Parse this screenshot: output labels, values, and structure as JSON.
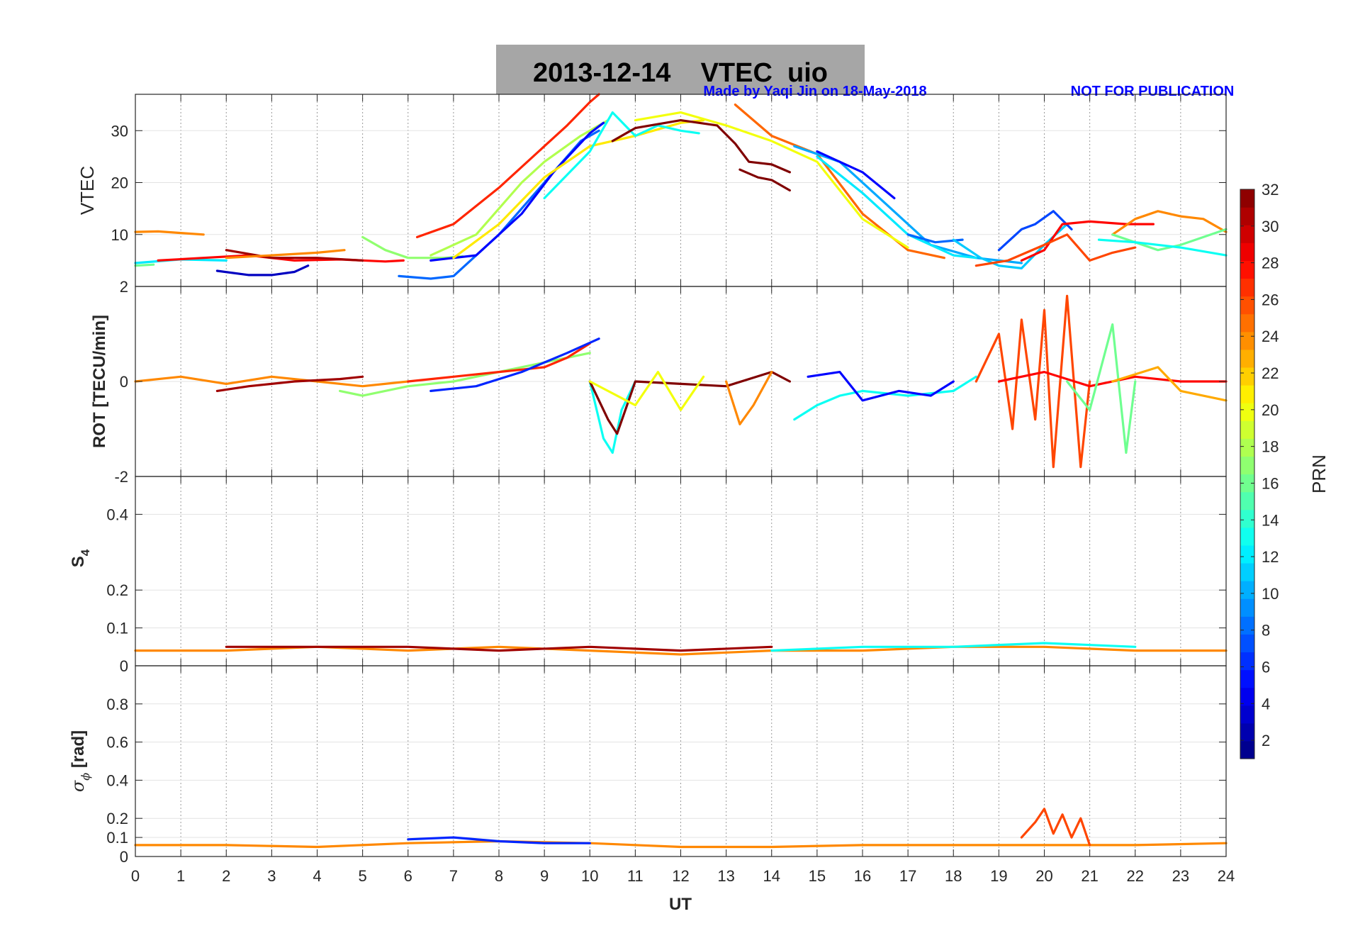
{
  "chart_data": {
    "type": "line",
    "title": "2013-12-14    VTEC  uio",
    "credit_left": "Made by Yaqi Jin on 18-May-2018",
    "credit_right": "NOT FOR PUBLICATION",
    "xlabel": "UT",
    "xlim": [
      0,
      24
    ],
    "xticks": [
      "0",
      "1",
      "2",
      "3",
      "4",
      "5",
      "6",
      "7",
      "8",
      "9",
      "10",
      "11",
      "12",
      "13",
      "14",
      "15",
      "16",
      "17",
      "18",
      "19",
      "20",
      "21",
      "22",
      "23",
      "24"
    ],
    "colorbar": {
      "label": "PRN",
      "range": [
        1,
        32
      ],
      "ticks": [
        "2",
        "4",
        "6",
        "8",
        "10",
        "12",
        "14",
        "16",
        "18",
        "20",
        "22",
        "24",
        "26",
        "28",
        "30",
        "32"
      ]
    },
    "panels": [
      {
        "id": "vtec",
        "ylabel": "VTEC",
        "ylim": [
          0,
          37
        ],
        "yticks": [
          {
            "v": 10,
            "t": "10"
          },
          {
            "v": 20,
            "t": "20"
          },
          {
            "v": 30,
            "t": "30"
          }
        ],
        "series": [
          {
            "prn": 24,
            "x": [
              0.0,
              0.5,
              1.0,
              1.5
            ],
            "y": [
              10.5,
              10.6,
              10.3,
              10.0
            ]
          },
          {
            "prn": 16,
            "x": [
              0.0,
              0.4
            ],
            "y": [
              4.0,
              4.2
            ]
          },
          {
            "prn": 12,
            "x": [
              0.0,
              1.0,
              2.0
            ],
            "y": [
              4.5,
              5.2,
              5.0
            ]
          },
          {
            "prn": 28,
            "x": [
              0.5,
              1.5,
              2.5,
              3.5,
              4.5,
              5.5,
              5.9
            ],
            "y": [
              5.0,
              5.5,
              6.0,
              5.0,
              5.2,
              4.8,
              5.0
            ]
          },
          {
            "prn": 31,
            "x": [
              2.0,
              3.0,
              4.0,
              5.0
            ],
            "y": [
              7.0,
              5.5,
              5.5,
              5.0
            ]
          },
          {
            "prn": 3,
            "x": [
              1.8,
              2.5,
              3.0,
              3.5,
              3.8
            ],
            "y": [
              3.0,
              2.2,
              2.2,
              2.8,
              4.0
            ]
          },
          {
            "prn": 24,
            "x": [
              2.0,
              3.0,
              4.0,
              4.6
            ],
            "y": [
              5.5,
              6.0,
              6.5,
              7.0
            ]
          },
          {
            "prn": 17,
            "x": [
              5.0,
              5.5,
              6.0,
              6.8,
              7.2
            ],
            "y": [
              9.5,
              7.0,
              5.5,
              5.5,
              5.8
            ]
          },
          {
            "prn": 27,
            "x": [
              6.2,
              7.0,
              8.0,
              9.0,
              9.5,
              10.0,
              10.2
            ],
            "y": [
              9.5,
              12.0,
              19.0,
              27.0,
              31.0,
              35.5,
              37.0
            ]
          },
          {
            "prn": 8,
            "x": [
              5.8,
              6.5,
              7.0,
              8.0,
              9.0,
              9.8,
              10.2
            ],
            "y": [
              2.0,
              1.5,
              2.0,
              10.0,
              20.0,
              28.0,
              30.0
            ]
          },
          {
            "prn": 18,
            "x": [
              6.5,
              7.5,
              8.5,
              9.0,
              9.8,
              10.4
            ],
            "y": [
              6.0,
              10.0,
              20.0,
              24.0,
              29.0,
              32.0
            ]
          },
          {
            "prn": 5,
            "x": [
              6.5,
              7.5,
              8.5,
              9.2,
              10.0,
              10.3
            ],
            "y": [
              5.0,
              6.0,
              14.0,
              22.0,
              29.5,
              31.5
            ]
          },
          {
            "prn": 21,
            "x": [
              7.0,
              8.0,
              9.0,
              10.0,
              11.0,
              12.0,
              12.5
            ],
            "y": [
              5.5,
              12.0,
              21.0,
              27.0,
              29.0,
              31.5,
              32.0
            ]
          },
          {
            "prn": 13,
            "x": [
              9.0,
              10.0,
              10.5,
              11.0,
              11.5,
              12.0,
              12.4
            ],
            "y": [
              17.0,
              26.0,
              33.5,
              29.0,
              31.0,
              30.0,
              29.5
            ]
          },
          {
            "prn": 32,
            "x": [
              10.5,
              11.0,
              12.0,
              12.8,
              13.2,
              13.5,
              14.0,
              14.4
            ],
            "y": [
              28.0,
              30.5,
              32.0,
              31.0,
              27.5,
              24.0,
              23.5,
              22.0
            ]
          },
          {
            "prn": 32,
            "x": [
              13.3,
              13.7,
              14.0,
              14.4
            ],
            "y": [
              22.5,
              21.0,
              20.5,
              18.5
            ]
          },
          {
            "prn": 25,
            "x": [
              13.2,
              14.0,
              15.0,
              16.0,
              17.0,
              17.8
            ],
            "y": [
              35.0,
              29.0,
              25.5,
              14.0,
              7.0,
              5.5
            ]
          },
          {
            "prn": 20,
            "x": [
              11.0,
              12.0,
              13.0,
              14.0,
              15.0,
              16.0,
              17.0
            ],
            "y": [
              32.0,
              33.5,
              31.0,
              28.0,
              24.0,
              13.0,
              7.5
            ]
          },
          {
            "prn": 10,
            "x": [
              14.5,
              15.5,
              16.5,
              17.5,
              18.5,
              19.5
            ],
            "y": [
              27.0,
              24.0,
              16.0,
              8.0,
              5.5,
              4.5
            ]
          },
          {
            "prn": 5,
            "x": [
              15.0,
              16.0,
              16.7
            ],
            "y": [
              26.0,
              22.0,
              17.0
            ]
          },
          {
            "prn": 12,
            "x": [
              15.0,
              16.0,
              17.0,
              18.0,
              18.5
            ],
            "y": [
              25.0,
              18.0,
              10.0,
              6.0,
              5.5
            ]
          },
          {
            "prn": 8,
            "x": [
              17.0,
              17.6,
              18.2
            ],
            "y": [
              10.0,
              8.5,
              9.0
            ]
          },
          {
            "prn": 11,
            "x": [
              18.0,
              18.6,
              19.0,
              19.5,
              20.0,
              20.5
            ],
            "y": [
              9.0,
              5.5,
              4.0,
              3.5,
              8.0,
              12.0
            ]
          },
          {
            "prn": 7,
            "x": [
              19.0,
              19.5,
              19.8,
              20.2,
              20.6
            ],
            "y": [
              7.0,
              11.0,
              12.0,
              14.5,
              11.0
            ]
          },
          {
            "prn": 28,
            "x": [
              19.5,
              20.0,
              20.4,
              21.0,
              21.8,
              22.4
            ],
            "y": [
              5.0,
              7.0,
              12.0,
              12.5,
              12.0,
              12.0
            ]
          },
          {
            "prn": 26,
            "x": [
              18.5,
              19.2,
              20.0,
              20.5,
              21.0,
              21.5,
              22.0
            ],
            "y": [
              4.0,
              5.0,
              8.0,
              10.0,
              5.0,
              6.5,
              7.5
            ]
          },
          {
            "prn": 24,
            "x": [
              21.5,
              22.0,
              22.5,
              23.0,
              23.5,
              24.0
            ],
            "y": [
              10.0,
              13.0,
              14.5,
              13.5,
              13.0,
              10.5
            ]
          },
          {
            "prn": 16,
            "x": [
              21.5,
              22.5,
              23.0,
              23.5,
              24.0
            ],
            "y": [
              10.0,
              7.0,
              8.0,
              9.5,
              11.0
            ]
          },
          {
            "prn": 13,
            "x": [
              21.2,
              22.0,
              23.0,
              24.0
            ],
            "y": [
              9.0,
              8.5,
              7.5,
              6.0
            ]
          }
        ]
      },
      {
        "id": "rot",
        "ylabel": "ROT [TECU/min]",
        "ylim": [
          -2,
          2
        ],
        "yticks": [
          {
            "v": -2,
            "t": "-2"
          },
          {
            "v": 0,
            "t": "0"
          },
          {
            "v": 2,
            "t": "2"
          }
        ],
        "series": [
          {
            "prn": 24,
            "x": [
              0.0,
              1.0,
              2.0,
              3.0,
              4.0,
              5.0,
              6.0
            ],
            "y": [
              0.0,
              0.1,
              -0.05,
              0.1,
              0.0,
              -0.1,
              0.0
            ]
          },
          {
            "prn": 31,
            "x": [
              1.8,
              2.5,
              3.5,
              4.5,
              5.0
            ],
            "y": [
              -0.2,
              -0.1,
              0.0,
              0.05,
              0.1
            ]
          },
          {
            "prn": 17,
            "x": [
              4.5,
              5.0,
              6.0,
              7.0,
              8.0,
              9.0,
              10.0
            ],
            "y": [
              -0.2,
              -0.3,
              -0.1,
              0.0,
              0.2,
              0.4,
              0.6
            ]
          },
          {
            "prn": 27,
            "x": [
              6.0,
              7.0,
              8.0,
              9.0,
              9.5,
              10.0
            ],
            "y": [
              0.0,
              0.1,
              0.2,
              0.3,
              0.5,
              0.8
            ]
          },
          {
            "prn": 6,
            "x": [
              6.5,
              7.5,
              8.5,
              9.5,
              10.2
            ],
            "y": [
              -0.2,
              -0.1,
              0.2,
              0.6,
              0.9
            ]
          },
          {
            "prn": 13,
            "x": [
              10.0,
              10.3,
              10.5,
              10.7,
              11.0
            ],
            "y": [
              0.0,
              -1.2,
              -1.5,
              -0.6,
              0.0
            ]
          },
          {
            "prn": 32,
            "x": [
              10.0,
              10.4,
              10.6,
              11.0,
              12.0,
              13.0,
              14.0,
              14.4
            ],
            "y": [
              0.0,
              -0.8,
              -1.1,
              0.0,
              -0.05,
              -0.1,
              0.2,
              0.0
            ]
          },
          {
            "prn": 20,
            "x": [
              10.0,
              11.0,
              11.5,
              12.0,
              12.5
            ],
            "y": [
              0.0,
              -0.5,
              0.2,
              -0.6,
              0.1
            ]
          },
          {
            "prn": 24,
            "x": [
              13.0,
              13.3,
              13.6,
              14.0
            ],
            "y": [
              0.0,
              -0.9,
              -0.5,
              0.2
            ]
          },
          {
            "prn": 13,
            "x": [
              14.5,
              15.0,
              15.5,
              16.0,
              17.0,
              18.0,
              18.5
            ],
            "y": [
              -0.8,
              -0.5,
              -0.3,
              -0.2,
              -0.3,
              -0.2,
              0.1
            ]
          },
          {
            "prn": 5,
            "x": [
              14.8,
              15.5,
              16.0,
              16.8,
              17.5,
              18.0
            ],
            "y": [
              0.1,
              0.2,
              -0.4,
              -0.2,
              -0.3,
              0.0
            ]
          },
          {
            "prn": 26,
            "x": [
              18.5,
              19.0,
              19.3,
              19.5,
              19.8,
              20.0,
              20.2,
              20.5,
              20.8,
              21.0
            ],
            "y": [
              0.0,
              1.0,
              -1.0,
              1.3,
              -0.8,
              1.5,
              -1.8,
              1.8,
              -1.8,
              0.0
            ]
          },
          {
            "prn": 28,
            "x": [
              19.0,
              20.0,
              21.0,
              22.0,
              23.0,
              24.0
            ],
            "y": [
              0.0,
              0.2,
              -0.1,
              0.1,
              0.0,
              0.0
            ]
          },
          {
            "prn": 16,
            "x": [
              20.5,
              21.0,
              21.5,
              21.8,
              22.0
            ],
            "y": [
              0.0,
              -0.6,
              1.2,
              -1.5,
              0.0
            ]
          },
          {
            "prn": 23,
            "x": [
              21.5,
              22.5,
              23.0,
              24.0
            ],
            "y": [
              0.0,
              0.3,
              -0.2,
              -0.4
            ]
          }
        ]
      },
      {
        "id": "s4",
        "ylabel": "S4",
        "ylim": [
          0,
          0.5
        ],
        "yticks": [
          {
            "v": 0,
            "t": "0"
          },
          {
            "v": 0.1,
            "t": "0.1"
          },
          {
            "v": 0.2,
            "t": "0.2"
          },
          {
            "v": 0.4,
            "t": "0.4"
          }
        ],
        "series": [
          {
            "prn": 24,
            "x": [
              0,
              2,
              4,
              6,
              8,
              10,
              12,
              14,
              16,
              18,
              20,
              22,
              24
            ],
            "y": [
              0.04,
              0.04,
              0.05,
              0.04,
              0.05,
              0.04,
              0.03,
              0.04,
              0.04,
              0.05,
              0.05,
              0.04,
              0.04
            ]
          },
          {
            "prn": 31,
            "x": [
              2,
              4,
              6,
              8,
              10,
              12,
              14
            ],
            "y": [
              0.05,
              0.05,
              0.05,
              0.04,
              0.05,
              0.04,
              0.05
            ]
          },
          {
            "prn": 13,
            "x": [
              14,
              16,
              18,
              20,
              22
            ],
            "y": [
              0.04,
              0.05,
              0.05,
              0.06,
              0.05
            ]
          }
        ]
      },
      {
        "id": "sigphi",
        "ylabel": "sigma_phi [rad]",
        "ylim": [
          0,
          1
        ],
        "yticks": [
          {
            "v": 0,
            "t": "0"
          },
          {
            "v": 0.1,
            "t": "0.1"
          },
          {
            "v": 0.2,
            "t": "0.2"
          },
          {
            "v": 0.4,
            "t": "0.4"
          },
          {
            "v": 0.6,
            "t": "0.6"
          },
          {
            "v": 0.8,
            "t": "0.8"
          }
        ],
        "series": [
          {
            "prn": 24,
            "x": [
              0,
              2,
              4,
              6,
              8,
              10,
              12,
              14,
              16,
              18,
              22,
              24
            ],
            "y": [
              0.06,
              0.06,
              0.05,
              0.07,
              0.08,
              0.07,
              0.05,
              0.05,
              0.06,
              0.06,
              0.06,
              0.07
            ]
          },
          {
            "prn": 6,
            "x": [
              6,
              7,
              8,
              9,
              10
            ],
            "y": [
              0.09,
              0.1,
              0.08,
              0.07,
              0.07
            ]
          },
          {
            "prn": 26,
            "x": [
              19.5,
              19.8,
              20.0,
              20.2,
              20.4,
              20.6,
              20.8,
              21.0
            ],
            "y": [
              0.1,
              0.18,
              0.25,
              0.12,
              0.22,
              0.1,
              0.2,
              0.06
            ]
          }
        ]
      }
    ]
  }
}
